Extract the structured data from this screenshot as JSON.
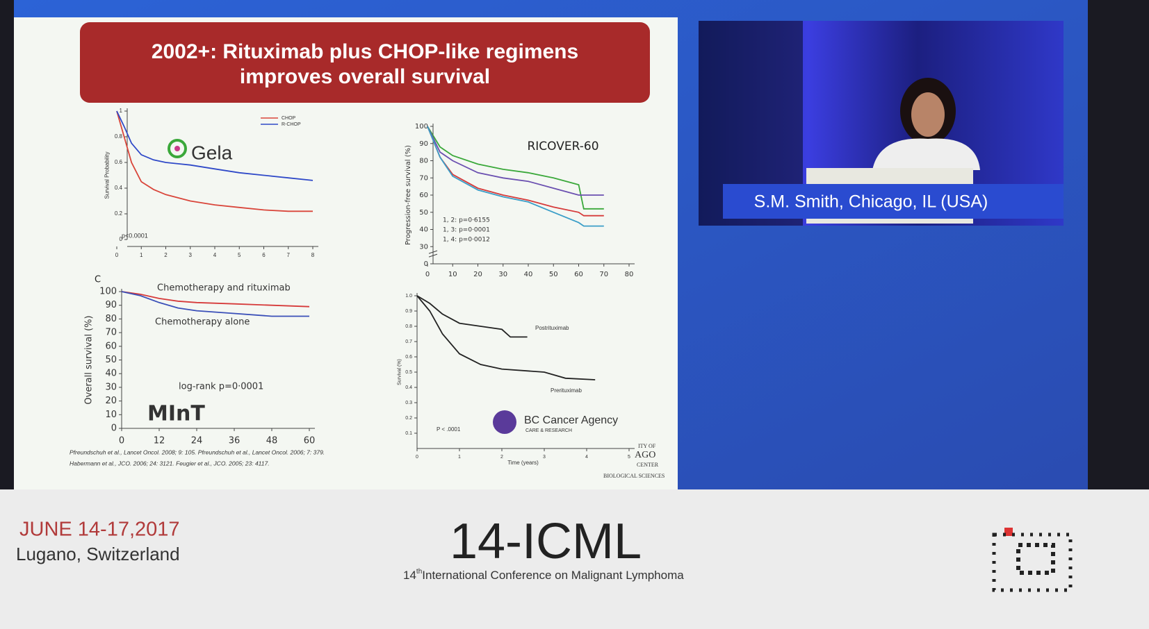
{
  "slide": {
    "title": [
      "2002+: Rituximab plus CHOP-like regimens",
      "improves overall survival"
    ],
    "references": [
      "Pfreundschuh et al., Lancet Oncol. 2008; 9: 105. Pfreundschuh et al., Lancet Oncol. 2006; 7: 379.",
      "Habermann et al., JCO. 2006; 24: 3121. Feugier et al., JCO. 2005; 23: 4117."
    ],
    "logo_fragments": [
      "ITY OF",
      "AGO",
      "CENTER",
      "BIOLOGICAL SCIENCES"
    ]
  },
  "chart_data": [
    {
      "type": "line",
      "ylabel": "Survival Probability",
      "legend": "upper right",
      "xlim": [
        0,
        8
      ],
      "xticks": [
        0,
        1,
        2,
        3,
        4,
        5,
        6,
        7,
        8
      ],
      "ylim": [
        0,
        1
      ],
      "yticks": [
        0,
        0.2,
        0.4,
        0.6,
        0.8,
        1
      ],
      "annotations": [
        "p<0.0001",
        "Gela"
      ],
      "series": [
        {
          "name": "CHOP",
          "color": "#d9453a",
          "x": [
            0,
            0.3,
            0.6,
            1,
            1.5,
            2,
            3,
            4,
            5,
            6,
            7,
            8
          ],
          "values": [
            1,
            0.8,
            0.6,
            0.45,
            0.39,
            0.35,
            0.3,
            0.27,
            0.25,
            0.23,
            0.22,
            0.22
          ]
        },
        {
          "name": "R-CHOP",
          "color": "#2f49c8",
          "x": [
            0,
            0.3,
            0.6,
            1,
            1.5,
            2,
            3,
            4,
            5,
            6,
            7,
            8
          ],
          "values": [
            1,
            0.88,
            0.75,
            0.66,
            0.62,
            0.6,
            0.58,
            0.55,
            0.52,
            0.5,
            0.48,
            0.46
          ]
        }
      ]
    },
    {
      "type": "line",
      "title": "RICOVER-60",
      "ylabel": "Progression-free survival (%)",
      "axis_break": true,
      "xlim": [
        0,
        80
      ],
      "xticks": [
        0,
        10,
        20,
        30,
        40,
        50,
        60,
        70,
        80
      ],
      "ylim": [
        0,
        100
      ],
      "yticks": [
        0,
        30,
        40,
        50,
        60,
        70,
        80,
        90,
        100
      ],
      "annotations": [
        "1, 2: p=0·6155",
        "1, 3: p=0·0001",
        "1, 4: p=0·0012"
      ],
      "series": [
        {
          "color": "#3aa83a",
          "x": [
            0,
            5,
            10,
            20,
            30,
            40,
            50,
            60,
            62,
            70
          ],
          "values": [
            100,
            88,
            83,
            78,
            75,
            73,
            70,
            66,
            52,
            52
          ]
        },
        {
          "color": "#6a4fb0",
          "x": [
            0,
            5,
            10,
            20,
            30,
            40,
            50,
            60,
            62,
            70
          ],
          "values": [
            100,
            85,
            80,
            73,
            70,
            68,
            64,
            60,
            60,
            60
          ]
        },
        {
          "color": "#d63a3a",
          "x": [
            0,
            5,
            10,
            20,
            30,
            40,
            50,
            60,
            62,
            70
          ],
          "values": [
            100,
            82,
            72,
            64,
            60,
            57,
            53,
            50,
            48,
            48
          ]
        },
        {
          "color": "#3a9ec8",
          "x": [
            0,
            5,
            10,
            20,
            30,
            40,
            50,
            60,
            62,
            70
          ],
          "values": [
            100,
            82,
            71,
            63,
            59,
            56,
            50,
            44,
            42,
            42
          ]
        }
      ]
    },
    {
      "type": "line",
      "panel_label": "C",
      "ylabel": "Overall survival (%)",
      "xlim": [
        0,
        60
      ],
      "xticks": [
        0,
        12,
        24,
        36,
        48,
        60
      ],
      "ylim": [
        0,
        100
      ],
      "yticks": [
        0,
        10,
        20,
        30,
        40,
        50,
        60,
        70,
        80,
        90,
        100
      ],
      "annotations": [
        "log-rank p=0·0001",
        "MInT"
      ],
      "series": [
        {
          "name": "Chemotherapy and rituximab",
          "color": "#d63a3a",
          "x": [
            0,
            6,
            12,
            18,
            24,
            36,
            48,
            60
          ],
          "values": [
            100,
            98,
            95,
            93,
            92,
            91,
            90,
            89
          ]
        },
        {
          "name": "Chemotherapy alone",
          "color": "#3a4fb8",
          "x": [
            0,
            6,
            12,
            18,
            24,
            36,
            48,
            60
          ],
          "values": [
            100,
            97,
            92,
            88,
            86,
            84,
            82,
            82
          ]
        }
      ]
    },
    {
      "type": "line",
      "xlabel": "Time (years)",
      "ylabel": "Survival (%)",
      "xlim": [
        0,
        5
      ],
      "xticks": [
        0,
        1,
        2,
        3,
        4,
        5
      ],
      "ylim": [
        0,
        1
      ],
      "yticks": [
        0.1,
        0.2,
        0.3,
        0.4,
        0.5,
        0.6,
        0.7,
        0.8,
        0.9,
        {
          "value": 1,
          "label": "1.0"
        }
      ],
      "annotations": [
        "P < .0001",
        "BC Cancer Agency",
        "CARE & RESEARCH"
      ],
      "series": [
        {
          "name": "Postrituximab",
          "color": "#222222",
          "x": [
            0,
            0.3,
            0.6,
            1,
            1.5,
            2,
            2.2,
            2.6
          ],
          "values": [
            1,
            0.95,
            0.88,
            0.82,
            0.8,
            0.78,
            0.73,
            0.73
          ]
        },
        {
          "name": "Prerituximab",
          "color": "#222222",
          "x": [
            0,
            0.3,
            0.6,
            1,
            1.5,
            2,
            3,
            3.5,
            4.2
          ],
          "values": [
            1,
            0.9,
            0.75,
            0.62,
            0.55,
            0.52,
            0.5,
            0.46,
            0.45
          ]
        }
      ]
    }
  ],
  "speaker": {
    "caption": "S.M. Smith, Chicago, IL (USA)"
  },
  "footer": {
    "dates": "JUNE 14-17,2017",
    "place": "Lugano, Switzerland",
    "conference": "14-ICML",
    "subtitle_number": "14",
    "subtitle_suffix": "th",
    "subtitle_text": "International Conference on Malignant Lymphoma"
  }
}
